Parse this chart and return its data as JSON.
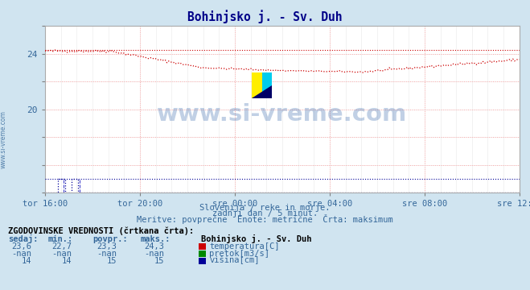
{
  "title": "Bohinjsko j. - Sv. Duh",
  "bg_color": "#d0e4f0",
  "plot_bg_color": "#ffffff",
  "grid_color_h": "#ffaaaa",
  "grid_color_v": "#ffaaaa",
  "grid_color_minor": "#e8e8e8",
  "x_tick_labels": [
    "tor 16:00",
    "tor 20:00",
    "sre 00:00",
    "sre 04:00",
    "sre 08:00",
    "sre 12:00"
  ],
  "x_tick_positions": [
    0,
    48,
    96,
    144,
    192,
    240
  ],
  "n_points": 289,
  "y_min": 14,
  "y_max": 26,
  "temp_color": "#cc0000",
  "height_color": "#000099",
  "watermark_color": "#3366aa",
  "subtitle1": "Slovenija / reke in morje.",
  "subtitle2": "zadnji dan / 5 minut.",
  "subtitle3": "Meritve: povprečne  Enote: metrične  Črta: maksimum",
  "table_header": "ZGODOVINSKE VREDNOSTI (črtkana črta):",
  "col_headers": [
    "sedaj:",
    "min.:",
    "povpr.:",
    "maks.:"
  ],
  "row1_vals": [
    "23,6",
    "22,7",
    "23,3",
    "24,3"
  ],
  "row2_vals": [
    "-nan",
    "-nan",
    "-nan",
    "-nan"
  ],
  "row3_vals": [
    "14",
    "14",
    "15",
    "15"
  ],
  "legend_station": "Bohinjsko j. - Sv. Duh",
  "legend_items": [
    "temperatura[C]",
    "pretok[m3/s]",
    "višina[cm]"
  ],
  "legend_colors": [
    "#cc0000",
    "#008800",
    "#000099"
  ],
  "text_color": "#336699",
  "title_color": "#000088"
}
